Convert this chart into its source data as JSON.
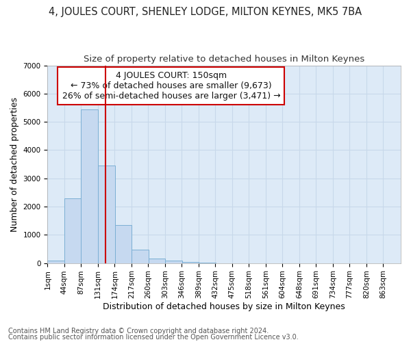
{
  "title": "4, JOULES COURT, SHENLEY LODGE, MILTON KEYNES, MK5 7BA",
  "subtitle": "Size of property relative to detached houses in Milton Keynes",
  "xlabel": "Distribution of detached houses by size in Milton Keynes",
  "ylabel": "Number of detached properties",
  "footer_line1": "Contains HM Land Registry data © Crown copyright and database right 2024.",
  "footer_line2": "Contains public sector information licensed under the Open Government Licence v3.0.",
  "annotation_line1": "4 JOULES COURT: 150sqm",
  "annotation_line2": "← 73% of detached houses are smaller (9,673)",
  "annotation_line3": "26% of semi-detached houses are larger (3,471) →",
  "bar_left_edges": [
    1,
    44,
    87,
    131,
    174,
    217,
    260,
    303,
    346,
    389,
    432,
    475,
    518,
    561,
    604,
    648,
    691,
    734,
    777,
    820
  ],
  "bar_heights": [
    80,
    2280,
    5450,
    3450,
    1350,
    480,
    160,
    80,
    40,
    5,
    2,
    2,
    2,
    2,
    1,
    1,
    1,
    1,
    1,
    1
  ],
  "bin_width": 43,
  "bar_color": "#c6d9f0",
  "bar_edge_color": "#7bafd4",
  "vline_x": 150,
  "vline_color": "#cc0000",
  "ylim": [
    0,
    7000
  ],
  "yticks": [
    0,
    1000,
    2000,
    3000,
    4000,
    5000,
    6000,
    7000
  ],
  "xtick_labels": [
    "1sqm",
    "44sqm",
    "87sqm",
    "131sqm",
    "174sqm",
    "217sqm",
    "260sqm",
    "303sqm",
    "346sqm",
    "389sqm",
    "432sqm",
    "475sqm",
    "518sqm",
    "561sqm",
    "604sqm",
    "648sqm",
    "691sqm",
    "734sqm",
    "777sqm",
    "820sqm",
    "863sqm"
  ],
  "grid_color": "#c8d8ea",
  "bg_color": "#ddeaf7",
  "annotation_box_color": "#cc0000",
  "title_fontsize": 10.5,
  "subtitle_fontsize": 9.5,
  "axis_label_fontsize": 9,
  "tick_fontsize": 7.5,
  "annotation_fontsize": 9,
  "footer_fontsize": 7
}
